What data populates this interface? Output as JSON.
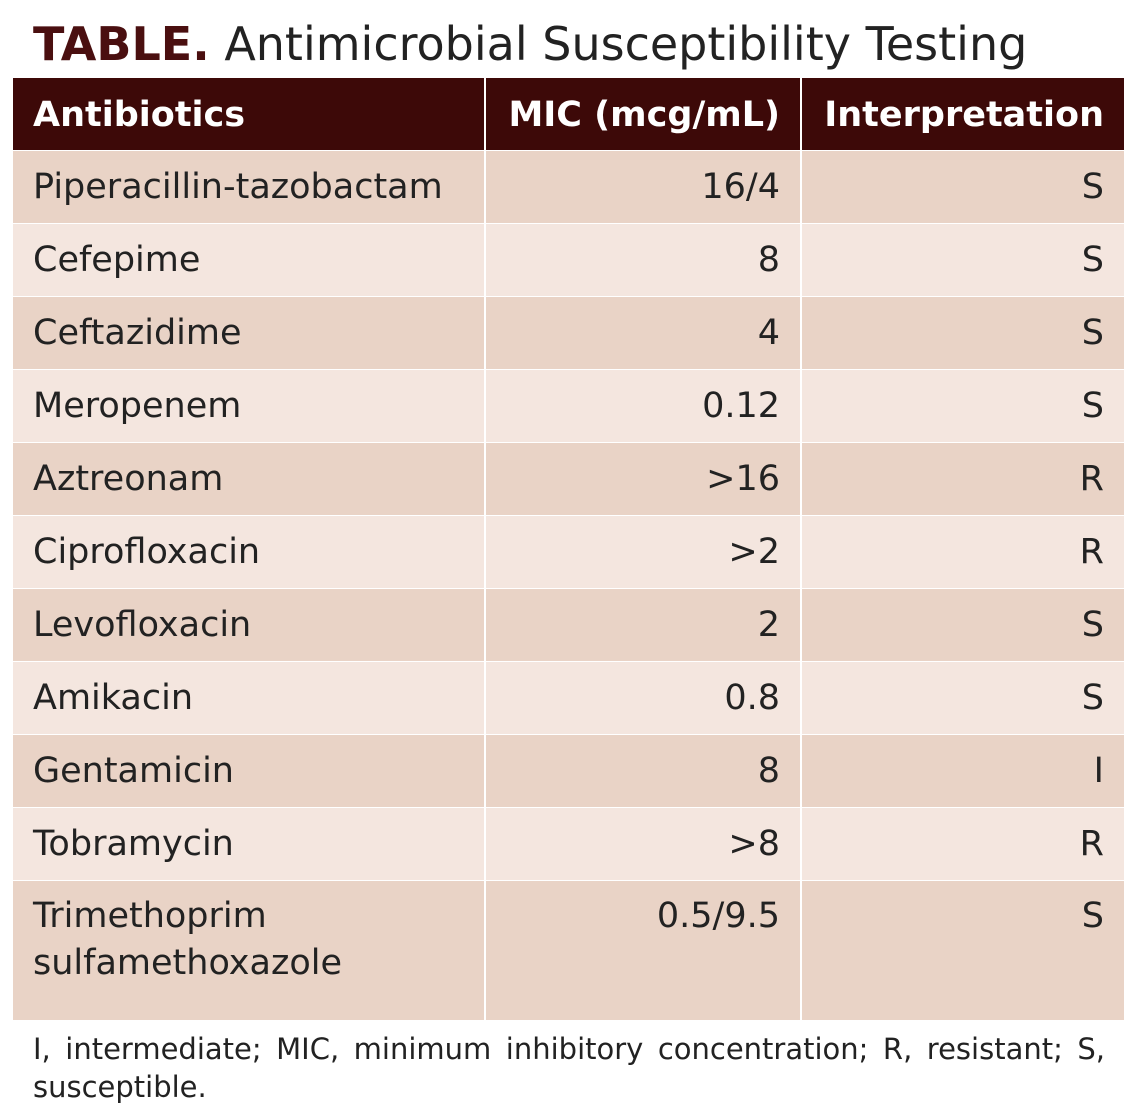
{
  "title": {
    "bold": "TABLE.",
    "text": "Antimicrobial Susceptibility Testing"
  },
  "table": {
    "headers": [
      "Antibiotics",
      "MIC (mcg/mL)",
      "Interpretation"
    ],
    "rows": [
      {
        "antibiotic": "Piperacillin-tazobactam",
        "mic": "16/4",
        "interpretation": "S"
      },
      {
        "antibiotic": "Cefepime",
        "mic": "8",
        "interpretation": "S"
      },
      {
        "antibiotic": "Ceftazidime",
        "mic": "4",
        "interpretation": "S"
      },
      {
        "antibiotic": "Meropenem",
        "mic": "0.12",
        "interpretation": "S"
      },
      {
        "antibiotic": "Aztreonam",
        "mic": ">16",
        "interpretation": "R"
      },
      {
        "antibiotic": "Ciprofloxacin",
        "mic": ">2",
        "interpretation": "R"
      },
      {
        "antibiotic": "Levofloxacin",
        "mic": "2",
        "interpretation": "S"
      },
      {
        "antibiotic": "Amikacin",
        "mic": "0.8",
        "interpretation": "S"
      },
      {
        "antibiotic": "Gentamicin",
        "mic": "8",
        "interpretation": "I"
      },
      {
        "antibiotic": "Tobramycin",
        "mic": ">8",
        "interpretation": "R"
      },
      {
        "antibiotic_line1": "Trimethoprim",
        "antibiotic_line2": "sulfamethoxazole",
        "mic": "0.5/9.5",
        "interpretation": "S"
      }
    ]
  },
  "footnote": "I, intermediate; MIC, minimum inhibitory concentration; R, resistant; S, susceptible.",
  "colors": {
    "header_background": "#3d0908",
    "title_accent": "#4a0f10",
    "row_dark": "#e9d3c6",
    "row_light": "#f4e6df"
  }
}
